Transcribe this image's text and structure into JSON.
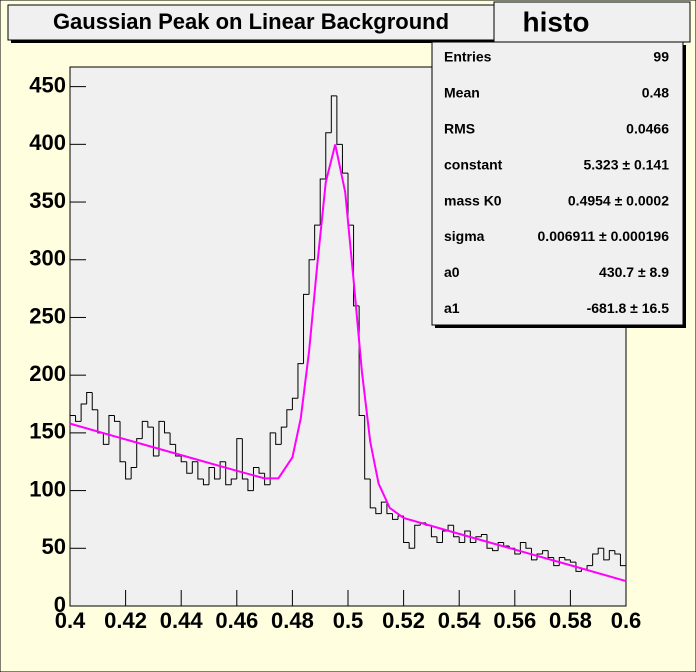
{
  "chart_data": {
    "type": "histogram",
    "title": "Gaussian Peak on Linear Background",
    "name": "histo",
    "xlim": [
      0.4,
      0.6
    ],
    "ylim": [
      0,
      467
    ],
    "xticks": [
      0.4,
      0.42,
      0.44,
      0.46,
      0.48,
      0.5,
      0.52,
      0.54,
      0.56,
      0.58,
      0.6
    ],
    "yticks": [
      0,
      50,
      100,
      150,
      200,
      250,
      300,
      350,
      400,
      450
    ],
    "bins": [
      0.4,
      0.402,
      0.404,
      0.406,
      0.408,
      0.41,
      0.412,
      0.414,
      0.416,
      0.418,
      0.42,
      0.422,
      0.424,
      0.426,
      0.428,
      0.43,
      0.432,
      0.434,
      0.436,
      0.438,
      0.44,
      0.442,
      0.444,
      0.446,
      0.448,
      0.45,
      0.452,
      0.454,
      0.456,
      0.458,
      0.46,
      0.462,
      0.464,
      0.466,
      0.468,
      0.47,
      0.472,
      0.474,
      0.476,
      0.478,
      0.48,
      0.482,
      0.484,
      0.486,
      0.488,
      0.49,
      0.492,
      0.494,
      0.496,
      0.498,
      0.5,
      0.502,
      0.504,
      0.506,
      0.508,
      0.51,
      0.512,
      0.514,
      0.516,
      0.518,
      0.52,
      0.522,
      0.524,
      0.526,
      0.528,
      0.53,
      0.532,
      0.534,
      0.536,
      0.538,
      0.54,
      0.542,
      0.544,
      0.546,
      0.548,
      0.55,
      0.552,
      0.554,
      0.556,
      0.558,
      0.56,
      0.562,
      0.564,
      0.566,
      0.568,
      0.57,
      0.572,
      0.574,
      0.576,
      0.578,
      0.58,
      0.582,
      0.584,
      0.586,
      0.588,
      0.59,
      0.592,
      0.594,
      0.596,
      0.598,
      0.6
    ],
    "values": [
      165,
      160,
      175,
      185,
      170,
      150,
      140,
      165,
      160,
      125,
      110,
      120,
      145,
      160,
      155,
      130,
      160,
      150,
      140,
      130,
      125,
      115,
      125,
      110,
      105,
      120,
      110,
      125,
      105,
      110,
      145,
      110,
      100,
      120,
      115,
      105,
      150,
      140,
      155,
      170,
      180,
      210,
      270,
      300,
      330,
      370,
      410,
      442,
      400,
      375,
      330,
      260,
      165,
      110,
      85,
      80,
      90,
      80,
      75,
      78,
      55,
      50,
      70,
      72,
      70,
      60,
      55,
      65,
      70,
      60,
      55,
      65,
      55,
      60,
      62,
      50,
      48,
      55,
      52,
      50,
      45,
      55,
      50,
      40,
      45,
      48,
      42,
      35,
      42,
      40,
      38,
      30,
      32,
      35,
      45,
      50,
      40,
      48,
      45,
      35
    ],
    "color": "#000000",
    "fit": {
      "color": "#ff00ff",
      "x": [
        0.4,
        0.42,
        0.44,
        0.46,
        0.47,
        0.475,
        0.48,
        0.483,
        0.486,
        0.489,
        0.492,
        0.4954,
        0.499,
        0.502,
        0.505,
        0.508,
        0.511,
        0.515,
        0.52,
        0.54,
        0.56,
        0.58,
        0.6
      ],
      "values": [
        158.0,
        144.3,
        130.7,
        117.1,
        110.6,
        110.7,
        128.8,
        162.5,
        220.7,
        297.0,
        367.1,
        399.9,
        358.5,
        282.6,
        203.1,
        142.3,
        106.1,
        85.0,
        76.3,
        62.5,
        48.9,
        35.3,
        21.6
      ]
    },
    "stats": [
      {
        "label": "Entries",
        "value": "99"
      },
      {
        "label": "Mean",
        "value": "0.48"
      },
      {
        "label": "RMS",
        "value": "0.0466"
      },
      {
        "label": "constant",
        "value": "5.323 ± 0.141"
      },
      {
        "label": "mass K0",
        "value": "0.4954 ± 0.0002"
      },
      {
        "label": "sigma",
        "value": "0.006911 ± 0.000196"
      },
      {
        "label": "a0",
        "value": "430.7 ± 8.9"
      },
      {
        "label": "a1",
        "value": "-681.8 ± 16.5"
      }
    ]
  }
}
